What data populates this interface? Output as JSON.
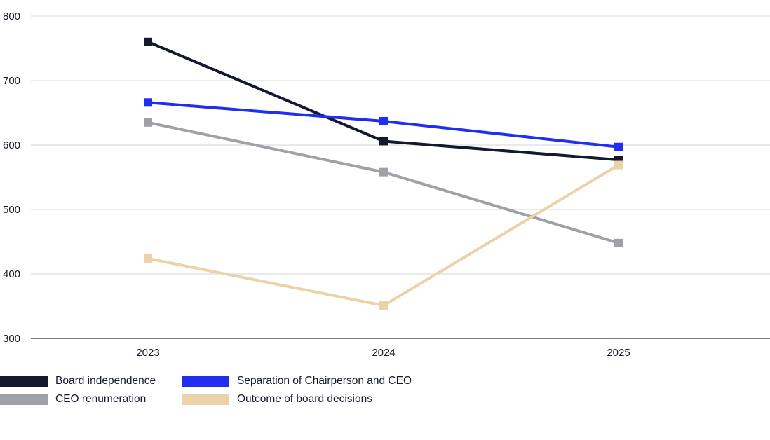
{
  "chart_data": {
    "type": "line",
    "title": "",
    "xlabel": "",
    "ylabel": "",
    "categories": [
      "2023",
      "2024",
      "2025"
    ],
    "ylim": [
      300,
      800
    ],
    "yticks": [
      "300",
      "400",
      "500",
      "600",
      "700",
      "800"
    ],
    "grid": true,
    "legend_position": "bottom-left",
    "series": [
      {
        "name": "Board independence",
        "values": [
          760,
          606,
          577
        ],
        "color": "#14192e"
      },
      {
        "name": "Separation of Chairperson and CEO",
        "values": [
          666,
          637,
          597
        ],
        "color": "#1f2ef0"
      },
      {
        "name": "CEO renumeration",
        "values": [
          635,
          558,
          448
        ],
        "color": "#a0a1a6"
      },
      {
        "name": "Outcome of board decisions",
        "values": [
          424,
          351,
          569
        ],
        "color": "#ebd2a8"
      }
    ]
  }
}
